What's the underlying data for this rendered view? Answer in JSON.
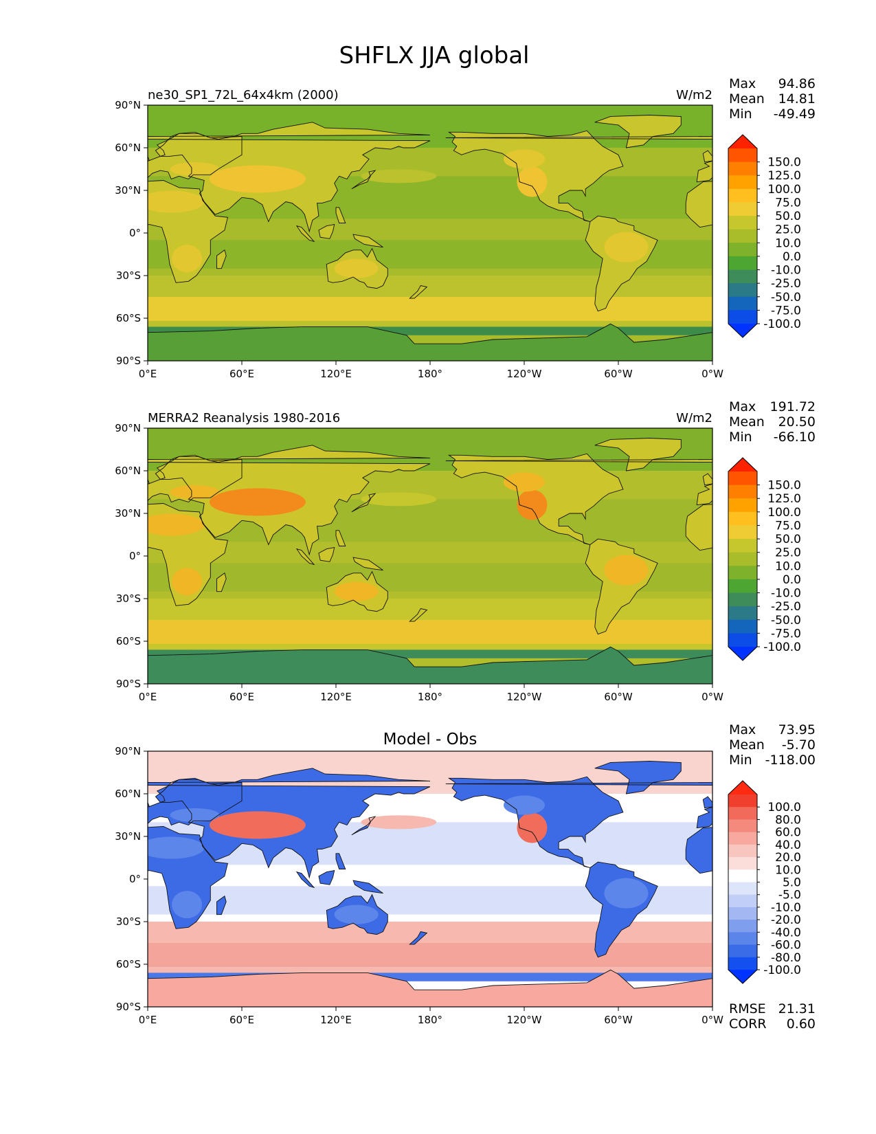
{
  "figure": {
    "title": "SHFLX JJA global"
  },
  "axes": {
    "lat_ticks": [
      "90°N",
      "60°N",
      "30°N",
      "0°",
      "30°S",
      "60°S",
      "90°S"
    ],
    "lon_ticks": [
      "0°E",
      "60°E",
      "120°E",
      "180°",
      "120°W",
      "60°W",
      "0°W"
    ]
  },
  "panels": [
    {
      "title": "ne30_SP1_72L_64x4km (2000)",
      "units": "W/m2",
      "stats": [
        {
          "label": "Max",
          "value": "94.86"
        },
        {
          "label": "Mean",
          "value": "14.81"
        },
        {
          "label": "Min",
          "value": "-49.49"
        }
      ],
      "colorbar": {
        "labels": [
          "150.0",
          "125.0",
          "100.0",
          "75.0",
          "50.0",
          "25.0",
          "10.0",
          "0.0",
          "-10.0",
          "-25.0",
          "-50.0",
          "-75.0",
          "-100.0"
        ],
        "colors": [
          "#ff2200",
          "#ff5500",
          "#ff8000",
          "#ffa200",
          "#ffbf1f",
          "#efcc33",
          "#c6c72c",
          "#a9bd2b",
          "#7db22a",
          "#4da631",
          "#3d8c5a",
          "#2a7a88",
          "#1366bb",
          "#0b4de6",
          "#0033ff"
        ]
      },
      "map_colors": {
        "land_hot": "#efc332",
        "land_mid": "#e3c730",
        "land_base": "#c9c52c",
        "ocean": "#a7bb2b",
        "ocean_cool": "#8cb52a",
        "ocean_warm": "#bcc22d",
        "sub_band": "#e9cb33",
        "high_lat": "#78b12a",
        "cold_band": "#3e8c4a",
        "antarctica": "#58a036"
      }
    },
    {
      "title": "MERRA2 Reanalysis 1980-2016",
      "units": "W/m2",
      "stats": [
        {
          "label": "Max",
          "value": "191.72"
        },
        {
          "label": "Mean",
          "value": "20.50"
        },
        {
          "label": "Min",
          "value": "-66.10"
        }
      ],
      "colorbar": {
        "labels": [
          "150.0",
          "125.0",
          "100.0",
          "75.0",
          "50.0",
          "25.0",
          "10.0",
          "0.0",
          "-10.0",
          "-25.0",
          "-50.0",
          "-75.0",
          "-100.0"
        ],
        "colors": [
          "#ff2200",
          "#ff5500",
          "#ff8000",
          "#ffa200",
          "#ffbf1f",
          "#efcc33",
          "#c6c72c",
          "#a9bd2b",
          "#7db22a",
          "#4da631",
          "#3d8c5a",
          "#2a7a88",
          "#1366bb",
          "#0b4de6",
          "#0033ff"
        ]
      },
      "map_colors": {
        "land_hot": "#f28a1c",
        "land_mid": "#efb726",
        "land_base": "#cdc52c",
        "ocean": "#b3be2c",
        "ocean_cool": "#a0b82b",
        "ocean_warm": "#c6c72d",
        "sub_band": "#ecc630",
        "high_lat": "#7fb12a",
        "cold_band": "#3d8c5a",
        "antarctica": "#3d8c5a"
      }
    },
    {
      "title": "Model - Obs",
      "units": "",
      "stats": [
        {
          "label": "Max",
          "value": "73.95"
        },
        {
          "label": "Mean",
          "value": "-5.70"
        },
        {
          "label": "Min",
          "value": "-118.00"
        }
      ],
      "extra_stats": [
        {
          "label": "RMSE",
          "value": "21.31"
        },
        {
          "label": "CORR",
          "value": "0.60"
        }
      ],
      "colorbar": {
        "labels": [
          "100.0",
          "80.0",
          "60.0",
          "40.0",
          "20.0",
          "10.0",
          "5.0",
          "-5.0",
          "-10.0",
          "-20.0",
          "-40.0",
          "-60.0",
          "-80.0",
          "-100.0"
        ],
        "colors": [
          "#ff2a12",
          "#f03f2d",
          "#f26a5a",
          "#f48a7e",
          "#f7a9a0",
          "#f9c5bf",
          "#fbdeda",
          "#ffffff",
          "#dde5fb",
          "#c1cff6",
          "#a3b7f2",
          "#7f9eee",
          "#5c85ea",
          "#3a6ce8",
          "#1450f0",
          "#0033ff"
        ]
      },
      "map_colors": {
        "land_hot": "#f06d5c",
        "land_mid": "#5d86ea",
        "land_base": "#3d6be6",
        "ocean": "#ffffff",
        "ocean_cool": "#d8e1f9",
        "ocean_warm": "#f7b8b0",
        "sub_band": "#f4a59b",
        "high_lat": "#f9d4cf",
        "cold_band": "#4b78e9",
        "antarctica": "#f7a89f"
      }
    }
  ]
}
